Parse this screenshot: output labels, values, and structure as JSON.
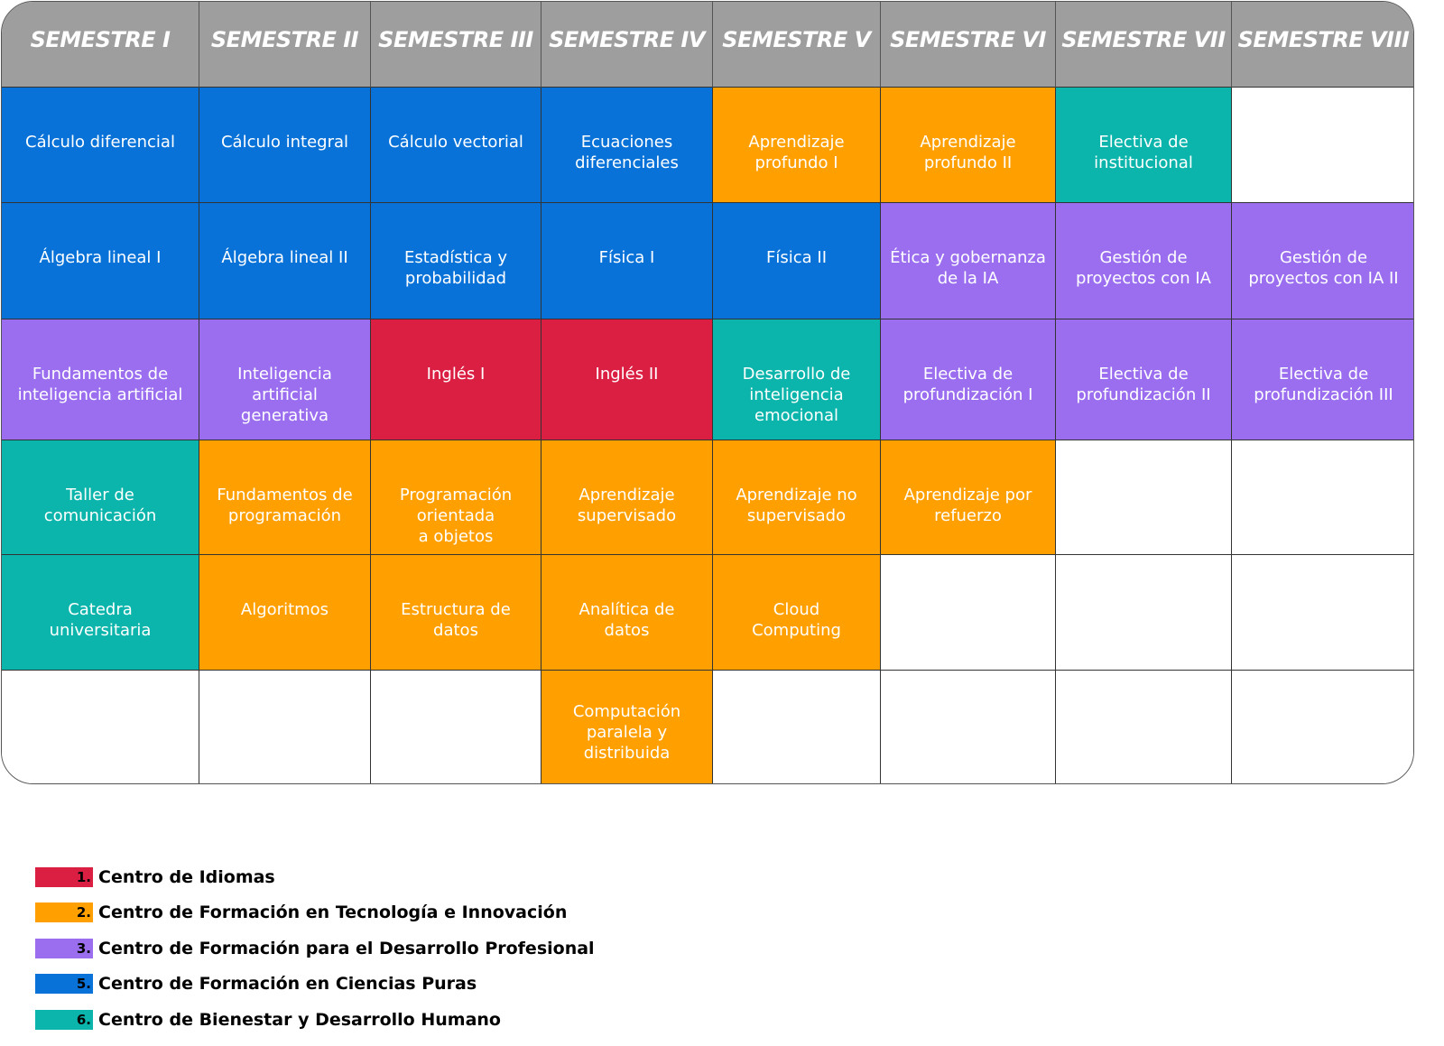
{
  "colors": {
    "header": "#9e9e9e",
    "blue": "#0872d8",
    "orange": "#ffa000",
    "purple": "#9b6ef0",
    "teal": "#0bb5ac",
    "red": "#db1f43",
    "empty": "#ffffff"
  },
  "headers": [
    "SEMESTRE I",
    "SEMESTRE II",
    "SEMESTRE III",
    "SEMESTRE IV",
    "SEMESTRE V",
    "SEMESTRE VI",
    "SEMESTRE VII",
    "SEMESTRE VIII"
  ],
  "rows": [
    [
      [
        "Cálculo diferencial",
        "blue"
      ],
      [
        "Cálculo integral",
        "blue"
      ],
      [
        "Cálculo vectorial",
        "blue"
      ],
      [
        "Ecuaciones\ndiferenciales",
        "blue"
      ],
      [
        "Aprendizaje\nprofundo I",
        "orange"
      ],
      [
        "Aprendizaje\nprofundo II",
        "orange"
      ],
      [
        "Electiva de\ninstitucional",
        "teal"
      ],
      [
        "",
        "empty"
      ]
    ],
    [
      [
        "Álgebra lineal I",
        "blue"
      ],
      [
        "Álgebra lineal II",
        "blue"
      ],
      [
        "Estadística y\nprobabilidad",
        "blue"
      ],
      [
        "Física I",
        "blue"
      ],
      [
        "Física II",
        "blue"
      ],
      [
        "Ética y gobernanza\nde la IA",
        "purple"
      ],
      [
        "Gestión de\nproyectos con IA",
        "purple"
      ],
      [
        "Gestión de\nproyectos con IA II",
        "purple"
      ]
    ],
    [
      [
        "Fundamentos de\ninteligencia artificial",
        "purple"
      ],
      [
        "Inteligencia\nartificial\ngenerativa",
        "purple"
      ],
      [
        "Inglés I",
        "red"
      ],
      [
        "Inglés II",
        "red"
      ],
      [
        "Desarrollo de\ninteligencia\nemocional",
        "teal"
      ],
      [
        "Electiva de\nprofundización I",
        "purple"
      ],
      [
        "Electiva de\nprofundización II",
        "purple"
      ],
      [
        "Electiva de\nprofundización III",
        "purple"
      ]
    ],
    [
      [
        "Taller de\ncomunicación",
        "teal"
      ],
      [
        "Fundamentos de\nprogramación",
        "orange"
      ],
      [
        "Programación\norientada\na objetos",
        "orange"
      ],
      [
        "Aprendizaje\nsupervisado",
        "orange"
      ],
      [
        "Aprendizaje no\nsupervisado",
        "orange"
      ],
      [
        "Aprendizaje por\nrefuerzo",
        "orange"
      ],
      [
        "",
        "empty"
      ],
      [
        "",
        "empty"
      ]
    ],
    [
      [
        "Catedra\nuniversitaria",
        "teal"
      ],
      [
        "Algoritmos",
        "orange"
      ],
      [
        "Estructura de\ndatos",
        "orange"
      ],
      [
        "Analítica de\ndatos",
        "orange"
      ],
      [
        "Cloud\nComputing",
        "orange"
      ],
      [
        "",
        "empty"
      ],
      [
        "",
        "empty"
      ],
      [
        "",
        "empty"
      ]
    ],
    [
      [
        "",
        "empty"
      ],
      [
        "",
        "empty"
      ],
      [
        "",
        "empty"
      ],
      [
        "Computación\nparalela y\ndistribuida",
        "orange"
      ],
      [
        "",
        "empty"
      ],
      [
        "",
        "empty"
      ],
      [
        "",
        "empty"
      ],
      [
        "",
        "empty"
      ]
    ]
  ],
  "legend": [
    {
      "num": "1.",
      "label": "Centro de Idiomas",
      "color": "red"
    },
    {
      "num": "2.",
      "label": "Centro de Formación en Tecnología e Innovación",
      "color": "orange"
    },
    {
      "num": "3.",
      "label": "Centro de Formación para el Desarrollo Profesional",
      "color": "purple"
    },
    {
      "num": "5.",
      "label": "Centro de Formación en Ciencias Puras",
      "color": "blue"
    },
    {
      "num": "6.",
      "label": "Centro de Bienestar y Desarrollo Humano",
      "color": "teal"
    }
  ]
}
